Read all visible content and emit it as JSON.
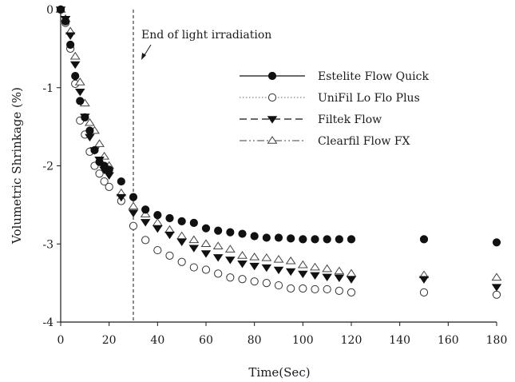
{
  "chart_data": {
    "type": "scatter",
    "xlabel": "Time(Sec)",
    "ylabel": "Volumetric Shrinkage (%)",
    "xlim": [
      0,
      180
    ],
    "ylim": [
      -4,
      0
    ],
    "xticks": [
      "0",
      "20",
      "40",
      "60",
      "80",
      "100",
      "120",
      "140",
      "160",
      "180"
    ],
    "yticks": [
      "0",
      "-1",
      "-2",
      "-3",
      "-4"
    ],
    "grid": false,
    "legend_position": "top-right",
    "annotation": {
      "text": "End of light irradiation",
      "x": 30
    },
    "series": [
      {
        "name": "Estelite Flow Quick",
        "marker": "filled-circle",
        "line_style": "solid",
        "x": [
          0,
          2,
          4,
          6,
          8,
          10,
          12,
          14,
          16,
          18,
          20,
          25,
          30,
          35,
          40,
          45,
          50,
          55,
          60,
          65,
          70,
          75,
          80,
          85,
          90,
          95,
          100,
          105,
          110,
          115,
          120,
          150,
          180
        ],
        "y": [
          0,
          -0.15,
          -0.45,
          -0.85,
          -1.17,
          -1.38,
          -1.55,
          -1.8,
          -1.95,
          -2.0,
          -2.05,
          -2.2,
          -2.4,
          -2.56,
          -2.63,
          -2.67,
          -2.71,
          -2.73,
          -2.8,
          -2.83,
          -2.85,
          -2.87,
          -2.9,
          -2.92,
          -2.92,
          -2.93,
          -2.94,
          -2.94,
          -2.94,
          -2.94,
          -2.94,
          -2.94,
          -2.98
        ]
      },
      {
        "name": "UniFil Lo Flo Plus",
        "marker": "open-circle",
        "line_style": "dotted",
        "x": [
          0,
          2,
          4,
          6,
          8,
          10,
          12,
          14,
          16,
          18,
          20,
          25,
          30,
          35,
          40,
          45,
          50,
          55,
          60,
          65,
          70,
          75,
          80,
          85,
          90,
          95,
          100,
          105,
          110,
          115,
          120,
          150,
          180
        ],
        "y": [
          0,
          -0.17,
          -0.5,
          -0.95,
          -1.42,
          -1.6,
          -1.82,
          -2.0,
          -2.1,
          -2.2,
          -2.27,
          -2.45,
          -2.77,
          -2.95,
          -3.08,
          -3.15,
          -3.23,
          -3.3,
          -3.33,
          -3.38,
          -3.43,
          -3.45,
          -3.48,
          -3.5,
          -3.53,
          -3.57,
          -3.57,
          -3.58,
          -3.58,
          -3.6,
          -3.62,
          -3.62,
          -3.65
        ]
      },
      {
        "name": "Filtek Flow",
        "marker": "filled-triangle-down",
        "line_style": "dashed",
        "x": [
          0,
          2,
          4,
          6,
          8,
          10,
          12,
          14,
          16,
          18,
          20,
          25,
          30,
          35,
          40,
          45,
          50,
          55,
          60,
          65,
          70,
          75,
          80,
          85,
          90,
          95,
          100,
          105,
          110,
          115,
          120,
          150,
          180
        ],
        "y": [
          0,
          -0.12,
          -0.33,
          -0.7,
          -1.05,
          -1.37,
          -1.63,
          -1.8,
          -1.92,
          -2.05,
          -2.12,
          -2.4,
          -2.6,
          -2.72,
          -2.8,
          -2.88,
          -2.97,
          -3.05,
          -3.12,
          -3.17,
          -3.2,
          -3.25,
          -3.28,
          -3.3,
          -3.33,
          -3.35,
          -3.38,
          -3.4,
          -3.42,
          -3.43,
          -3.45,
          -3.45,
          -3.55
        ]
      },
      {
        "name": "Clearfil Flow FX",
        "marker": "open-triangle-up",
        "line_style": "dash-dot-dot",
        "x": [
          0,
          2,
          4,
          6,
          8,
          10,
          12,
          14,
          16,
          18,
          20,
          25,
          30,
          35,
          40,
          45,
          50,
          55,
          60,
          65,
          70,
          75,
          80,
          85,
          90,
          95,
          100,
          105,
          110,
          115,
          120,
          150,
          180
        ],
        "y": [
          0,
          -0.12,
          -0.28,
          -0.6,
          -0.93,
          -1.2,
          -1.45,
          -1.55,
          -1.72,
          -1.88,
          -2.0,
          -2.35,
          -2.52,
          -2.62,
          -2.73,
          -2.82,
          -2.9,
          -2.95,
          -3.0,
          -3.03,
          -3.07,
          -3.15,
          -3.17,
          -3.18,
          -3.2,
          -3.22,
          -3.27,
          -3.3,
          -3.32,
          -3.35,
          -3.38,
          -3.4,
          -3.43
        ]
      }
    ]
  }
}
